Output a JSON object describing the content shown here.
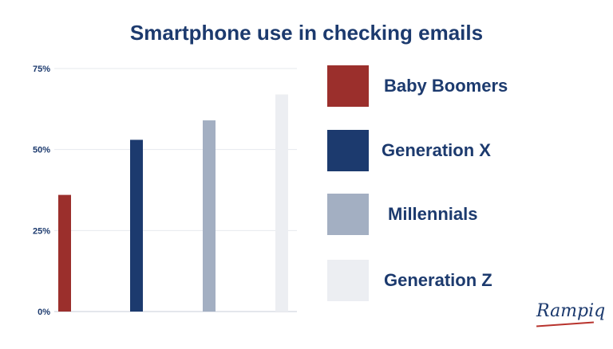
{
  "chart_data": {
    "type": "bar",
    "title": "Smartphone use in checking emails",
    "categories": [
      "Baby Boomers",
      "Generation X",
      "Millennials",
      "Generation Z"
    ],
    "values": [
      36,
      53,
      59,
      67
    ],
    "colors": [
      "#9b2f2c",
      "#1c3a6e",
      "#a3afc2",
      "#eceef2"
    ],
    "ylim": [
      0,
      75
    ],
    "yticks": [
      0,
      25,
      50,
      75
    ],
    "ytick_labels": [
      "0%",
      "25%",
      "50%",
      "75%"
    ],
    "grid": true,
    "legend_position": "right"
  },
  "logo_text": "Rampiq"
}
